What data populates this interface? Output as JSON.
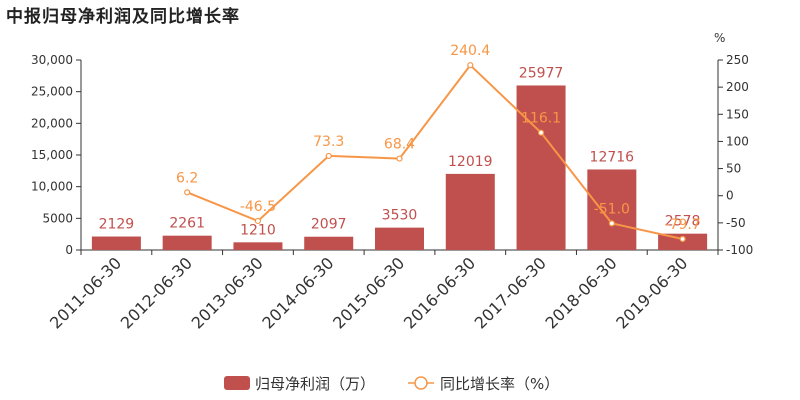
{
  "chart_data": {
    "type": "bar",
    "title": "中报归母净利润及同比增长率",
    "categories": [
      "2011-06-30",
      "2012-06-30",
      "2013-06-30",
      "2014-06-30",
      "2015-06-30",
      "2016-06-30",
      "2017-06-30",
      "2018-06-30",
      "2019-06-30"
    ],
    "series": [
      {
        "name": "归母净利润（万）",
        "type": "bar",
        "axis": "left",
        "color": "#c0504d",
        "values": [
          2129,
          2261,
          1210,
          2097,
          3530,
          12019,
          25977,
          12716,
          2578
        ]
      },
      {
        "name": "同比增长率（%）",
        "type": "line",
        "axis": "right",
        "color": "#f79646",
        "values": [
          null,
          6.2,
          -46.5,
          73.3,
          68.4,
          240.4,
          116.1,
          -51.0,
          -79.7
        ]
      }
    ],
    "y_left": {
      "min": 0,
      "max": 30000,
      "ticks": [
        "0",
        "5000",
        "10,000",
        "15,000",
        "20,000",
        "25,000",
        "30,000"
      ]
    },
    "y_right": {
      "label": "%",
      "min": -100,
      "max": 250,
      "ticks": [
        "-100",
        "-50",
        "0",
        "50",
        "100",
        "150",
        "200",
        "250"
      ]
    },
    "grid": false,
    "legend_position": "bottom-center"
  }
}
